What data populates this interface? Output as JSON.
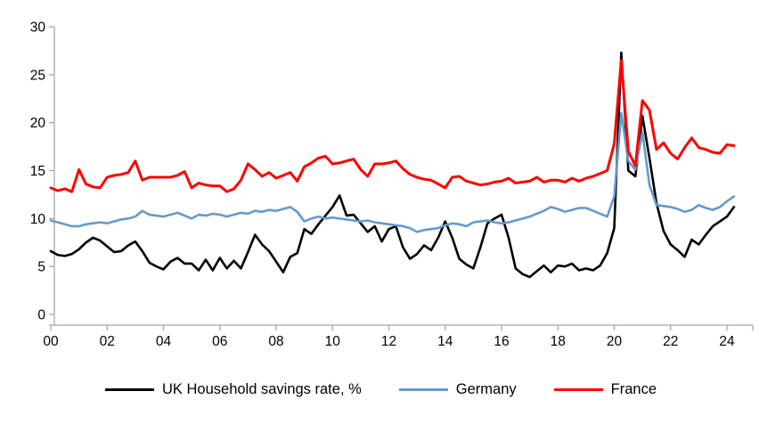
{
  "chart_data": {
    "type": "line",
    "title": "",
    "frequency": "quarterly",
    "x_start": "2000Q1",
    "x_end": "2024Q2",
    "x_axis": {
      "tick_labels": [
        "00",
        "02",
        "04",
        "06",
        "08",
        "10",
        "12",
        "14",
        "16",
        "18",
        "20",
        "22",
        "24"
      ],
      "grid": false
    },
    "y_axis": {
      "ticks": [
        0,
        5,
        10,
        15,
        20,
        25,
        30
      ],
      "range": [
        0,
        30
      ],
      "label": "",
      "grid": false
    },
    "legend_position": "bottom",
    "legend": [
      {
        "label": "UK Household savings rate, %",
        "color": "#000000"
      },
      {
        "label": "Germany",
        "color": "#6699cc"
      },
      {
        "label": "France",
        "color": "#ff0000"
      }
    ],
    "series": [
      {
        "name": "UK Household savings rate, %",
        "color": "#000000",
        "stroke_width": 2.6,
        "values": [
          6.6,
          6.2,
          6.1,
          6.3,
          6.8,
          7.5,
          8.0,
          7.7,
          7.1,
          6.5,
          6.6,
          7.2,
          7.6,
          6.6,
          5.4,
          5.0,
          4.7,
          5.5,
          5.9,
          5.3,
          5.3,
          4.6,
          5.7,
          4.6,
          5.9,
          4.8,
          5.6,
          4.8,
          6.5,
          8.3,
          7.3,
          6.6,
          5.5,
          4.4,
          6.0,
          6.4,
          8.9,
          8.4,
          9.4,
          10.3,
          11.2,
          12.4,
          10.3,
          10.4,
          9.5,
          8.6,
          9.2,
          7.6,
          8.9,
          9.2,
          7.0,
          5.8,
          6.3,
          7.2,
          6.7,
          8.0,
          9.7,
          8.0,
          5.8,
          5.2,
          4.8,
          7.0,
          9.5,
          10.0,
          10.4,
          8.0,
          4.8,
          4.2,
          3.9,
          4.5,
          5.1,
          4.4,
          5.1,
          5.0,
          5.3,
          4.6,
          4.8,
          4.6,
          5.1,
          6.4,
          9.0,
          27.3,
          15.0,
          14.4,
          20.7,
          16.3,
          11.6,
          8.7,
          7.3,
          6.7,
          6.0,
          7.8,
          7.3,
          8.3,
          9.2,
          9.7,
          10.2,
          11.2
        ]
      },
      {
        "name": "Germany",
        "color": "#6699cc",
        "stroke_width": 2.6,
        "values": [
          9.8,
          9.6,
          9.4,
          9.2,
          9.2,
          9.4,
          9.5,
          9.6,
          9.5,
          9.7,
          9.9,
          10.0,
          10.2,
          10.8,
          10.4,
          10.3,
          10.2,
          10.4,
          10.6,
          10.3,
          10.0,
          10.4,
          10.3,
          10.5,
          10.4,
          10.2,
          10.4,
          10.6,
          10.5,
          10.8,
          10.7,
          10.9,
          10.8,
          11.0,
          11.2,
          10.7,
          9.7,
          10.0,
          10.2,
          10.0,
          10.1,
          10.0,
          9.9,
          9.8,
          9.7,
          9.8,
          9.6,
          9.5,
          9.4,
          9.3,
          9.2,
          9.0,
          8.6,
          8.8,
          8.9,
          9.0,
          9.3,
          9.5,
          9.4,
          9.2,
          9.6,
          9.7,
          9.8,
          9.6,
          9.5,
          9.6,
          9.8,
          10.0,
          10.2,
          10.5,
          10.8,
          11.2,
          11.0,
          10.7,
          10.9,
          11.1,
          11.1,
          10.8,
          10.5,
          10.2,
          12.3,
          21.0,
          16.0,
          15.1,
          19.0,
          13.5,
          11.4,
          11.3,
          11.2,
          11.0,
          10.7,
          10.9,
          11.4,
          11.1,
          10.9,
          11.2,
          11.8,
          12.3
        ]
      },
      {
        "name": "France",
        "color": "#ff0000",
        "stroke_width": 3.0,
        "values": [
          13.2,
          12.9,
          13.1,
          12.8,
          15.1,
          13.6,
          13.3,
          13.2,
          14.3,
          14.5,
          14.6,
          14.8,
          16.0,
          14.0,
          14.3,
          14.3,
          14.3,
          14.3,
          14.5,
          14.9,
          13.2,
          13.7,
          13.5,
          13.4,
          13.4,
          12.8,
          13.1,
          14.0,
          15.7,
          15.1,
          14.4,
          14.8,
          14.2,
          14.5,
          14.8,
          13.9,
          15.4,
          15.8,
          16.3,
          16.5,
          15.7,
          15.8,
          16.0,
          16.2,
          15.1,
          14.4,
          15.7,
          15.7,
          15.8,
          16.0,
          15.2,
          14.6,
          14.3,
          14.1,
          14.0,
          13.6,
          13.2,
          14.3,
          14.4,
          13.9,
          13.7,
          13.5,
          13.6,
          13.8,
          13.9,
          14.2,
          13.7,
          13.8,
          13.9,
          14.3,
          13.8,
          14.0,
          14.0,
          13.8,
          14.2,
          13.9,
          14.2,
          14.4,
          14.7,
          15.0,
          17.8,
          26.5,
          17.0,
          15.5,
          22.3,
          21.3,
          17.2,
          17.9,
          16.8,
          16.2,
          17.4,
          18.4,
          17.4,
          17.2,
          16.9,
          16.8,
          17.7,
          17.6
        ]
      }
    ]
  },
  "colors": {
    "axis_line": "#a6a6a6",
    "tick_text": "#000000",
    "background": "#ffffff"
  }
}
